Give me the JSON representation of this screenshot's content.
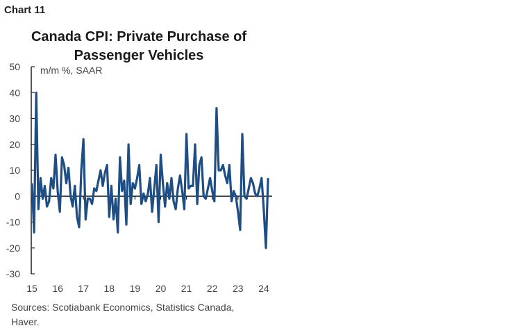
{
  "chart_number": "Chart 11",
  "chart_data": {
    "type": "line",
    "title_lines": [
      "Canada CPI: Private Purchase of",
      "Passenger Vehicles"
    ],
    "ylabel": "m/m %, SAAR",
    "xlabel": "",
    "ylim": [
      -30,
      50
    ],
    "yticks": [
      50,
      40,
      30,
      20,
      10,
      0,
      -10,
      -20,
      -30
    ],
    "xticks": [
      "15",
      "16",
      "17",
      "18",
      "19",
      "20",
      "21",
      "22",
      "23",
      "24"
    ],
    "x_start": "2015-01",
    "frequency": "monthly",
    "grid": false,
    "legend": "none",
    "color": "#1f4e84",
    "series": [
      {
        "values": [
          5,
          -14,
          40,
          -5,
          7,
          -1,
          4,
          -4,
          -2,
          7,
          3,
          16,
          2,
          -6,
          15,
          12,
          5,
          11,
          0,
          -4,
          4,
          -8,
          -12,
          10,
          22,
          -9,
          -1,
          -1,
          -3,
          3,
          2,
          6,
          10,
          4,
          9,
          12,
          -8,
          4,
          -9,
          -1,
          -14,
          15,
          2,
          6,
          -11,
          20,
          -3,
          5,
          3,
          7,
          12,
          -3,
          1,
          -2,
          1,
          7,
          -6,
          3,
          12,
          -10,
          16,
          5,
          -4,
          5,
          -1,
          7,
          -2,
          -5,
          3,
          8,
          2,
          -5,
          24,
          3,
          4,
          4,
          20,
          -3,
          12,
          15,
          0,
          -1,
          3,
          7,
          2,
          -2,
          34,
          10,
          10,
          12,
          8,
          5,
          12,
          -2,
          2,
          0,
          -6,
          -13,
          24,
          0,
          -1,
          3,
          7,
          5,
          1,
          0,
          3,
          7,
          -5,
          -20,
          7
        ]
      }
    ]
  },
  "sources": "Sources: Scotiabank Economics, Statistics Canada, Haver."
}
